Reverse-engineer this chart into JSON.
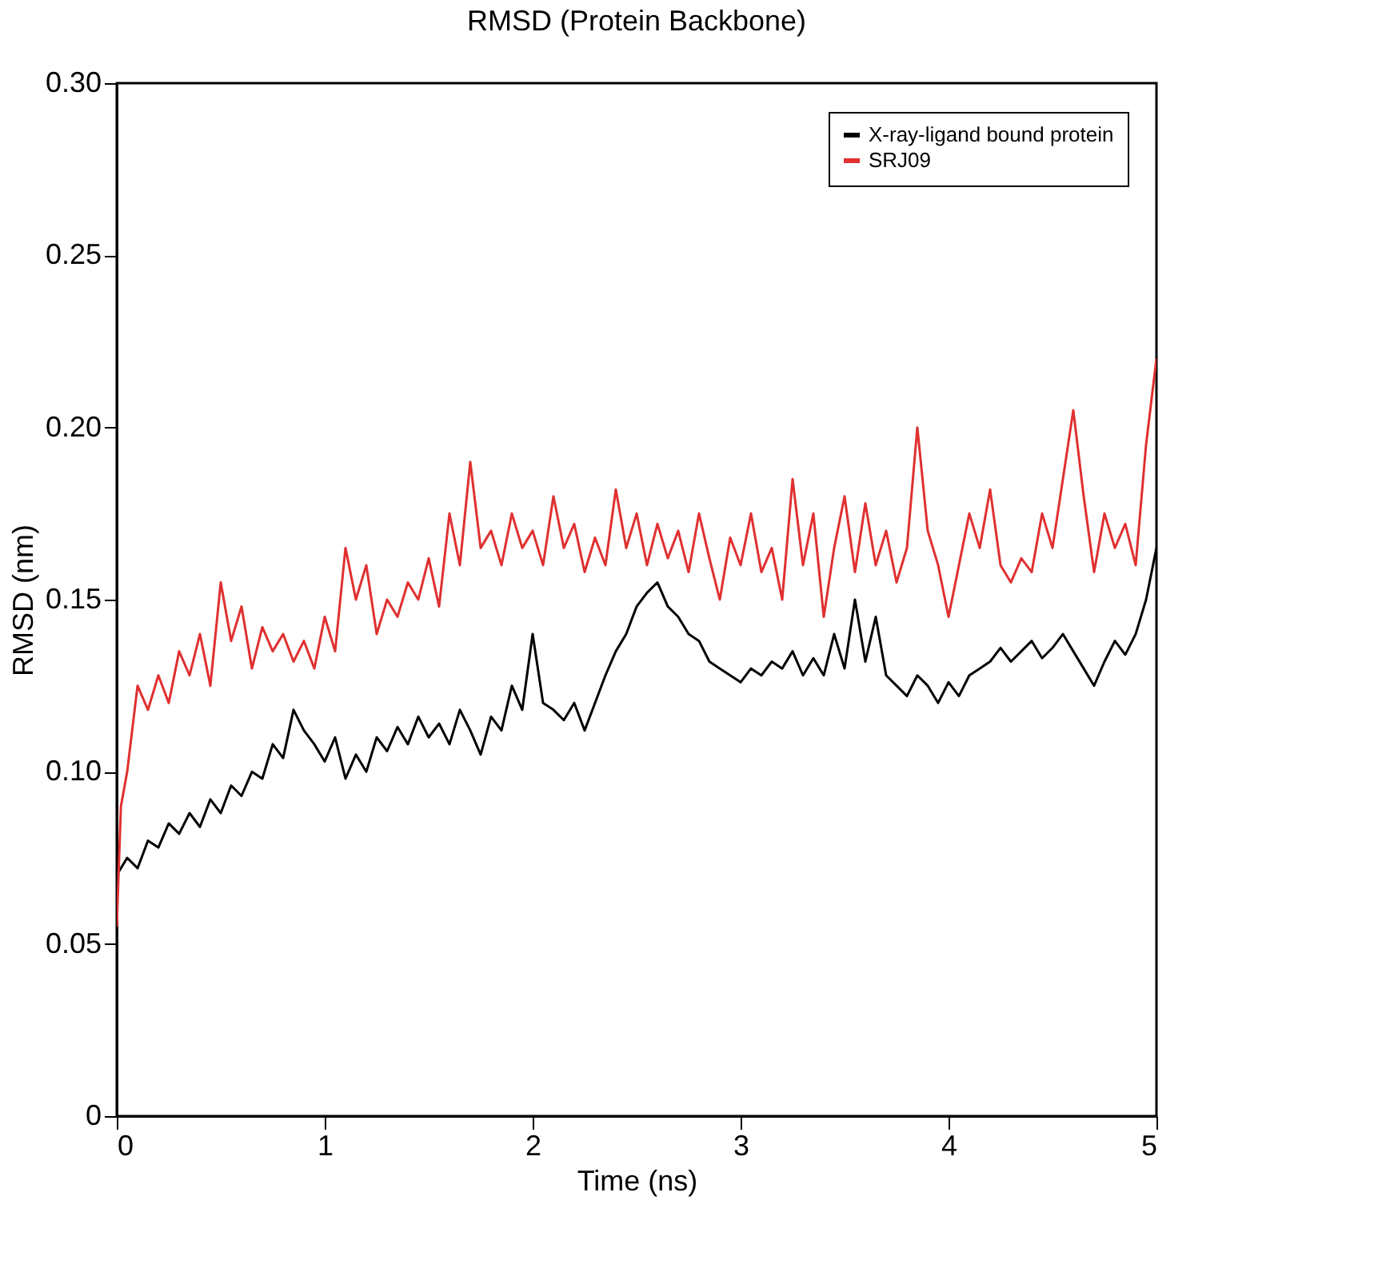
{
  "chart_data": {
    "type": "line",
    "title": "RMSD (Protein Backbone)",
    "xlabel": "Time (ns)",
    "ylabel": "RMSD (nm)",
    "xlim": [
      0,
      5
    ],
    "ylim": [
      0,
      0.3
    ],
    "xticks": [
      0,
      1,
      2,
      3,
      4,
      5
    ],
    "yticks": [
      0,
      0.05,
      {
        "value": 0.1,
        "label": "0.10"
      },
      {
        "value": 0.15,
        "label": "0.15"
      },
      {
        "value": 0.2,
        "label": "0.20"
      },
      0.25,
      {
        "value": 0.3,
        "label": "0.30"
      }
    ],
    "grid": false,
    "legend": "top right",
    "marker": "none",
    "line_style": "solid",
    "series": [
      {
        "name": "X-ray-ligand bound protein",
        "color": "#000000",
        "x": [
          0.0,
          0.05,
          0.1,
          0.15,
          0.2,
          0.25,
          0.3,
          0.35,
          0.4,
          0.45,
          0.5,
          0.55,
          0.6,
          0.65,
          0.7,
          0.75,
          0.8,
          0.85,
          0.9,
          0.95,
          1.0,
          1.05,
          1.1,
          1.15,
          1.2,
          1.25,
          1.3,
          1.35,
          1.4,
          1.45,
          1.5,
          1.55,
          1.6,
          1.65,
          1.7,
          1.75,
          1.8,
          1.85,
          1.9,
          1.95,
          2.0,
          2.05,
          2.1,
          2.15,
          2.2,
          2.25,
          2.3,
          2.35,
          2.4,
          2.45,
          2.5,
          2.55,
          2.6,
          2.65,
          2.7,
          2.75,
          2.8,
          2.85,
          2.9,
          2.95,
          3.0,
          3.05,
          3.1,
          3.15,
          3.2,
          3.25,
          3.3,
          3.35,
          3.4,
          3.45,
          3.5,
          3.55,
          3.6,
          3.65,
          3.7,
          3.75,
          3.8,
          3.85,
          3.9,
          3.95,
          4.0,
          4.05,
          4.1,
          4.15,
          4.2,
          4.25,
          4.3,
          4.35,
          4.4,
          4.45,
          4.5,
          4.55,
          4.6,
          4.65,
          4.7,
          4.75,
          4.8,
          4.85,
          4.9,
          4.95,
          5.0
        ],
        "values": [
          0.07,
          0.075,
          0.072,
          0.08,
          0.078,
          0.085,
          0.082,
          0.088,
          0.084,
          0.092,
          0.088,
          0.096,
          0.093,
          0.1,
          0.098,
          0.108,
          0.104,
          0.118,
          0.112,
          0.108,
          0.103,
          0.11,
          0.098,
          0.105,
          0.1,
          0.11,
          0.106,
          0.113,
          0.108,
          0.116,
          0.11,
          0.114,
          0.108,
          0.118,
          0.112,
          0.105,
          0.116,
          0.112,
          0.125,
          0.118,
          0.14,
          0.12,
          0.118,
          0.115,
          0.12,
          0.112,
          0.12,
          0.128,
          0.135,
          0.14,
          0.148,
          0.152,
          0.155,
          0.148,
          0.145,
          0.14,
          0.138,
          0.132,
          0.13,
          0.128,
          0.126,
          0.13,
          0.128,
          0.132,
          0.13,
          0.135,
          0.128,
          0.133,
          0.128,
          0.14,
          0.13,
          0.15,
          0.132,
          0.145,
          0.128,
          0.125,
          0.122,
          0.128,
          0.125,
          0.12,
          0.126,
          0.122,
          0.128,
          0.13,
          0.132,
          0.136,
          0.132,
          0.135,
          0.138,
          0.133,
          0.136,
          0.14,
          0.135,
          0.13,
          0.125,
          0.132,
          0.138,
          0.134,
          0.14,
          0.15,
          0.165
        ]
      },
      {
        "name": "SRJ09",
        "color": "#e03030",
        "x": [
          0.0,
          0.02,
          0.05,
          0.1,
          0.15,
          0.2,
          0.25,
          0.3,
          0.35,
          0.4,
          0.45,
          0.5,
          0.55,
          0.6,
          0.65,
          0.7,
          0.75,
          0.8,
          0.85,
          0.9,
          0.95,
          1.0,
          1.05,
          1.1,
          1.15,
          1.2,
          1.25,
          1.3,
          1.35,
          1.4,
          1.45,
          1.5,
          1.55,
          1.6,
          1.65,
          1.7,
          1.75,
          1.8,
          1.85,
          1.9,
          1.95,
          2.0,
          2.05,
          2.1,
          2.15,
          2.2,
          2.25,
          2.3,
          2.35,
          2.4,
          2.45,
          2.5,
          2.55,
          2.6,
          2.65,
          2.7,
          2.75,
          2.8,
          2.85,
          2.9,
          2.95,
          3.0,
          3.05,
          3.1,
          3.15,
          3.2,
          3.25,
          3.3,
          3.35,
          3.4,
          3.45,
          3.5,
          3.55,
          3.6,
          3.65,
          3.7,
          3.75,
          3.8,
          3.85,
          3.9,
          3.95,
          4.0,
          4.05,
          4.1,
          4.15,
          4.2,
          4.25,
          4.3,
          4.35,
          4.4,
          4.45,
          4.5,
          4.55,
          4.6,
          4.65,
          4.7,
          4.75,
          4.8,
          4.85,
          4.9,
          4.95,
          5.0
        ],
        "values": [
          0.055,
          0.09,
          0.1,
          0.125,
          0.118,
          0.128,
          0.12,
          0.135,
          0.128,
          0.14,
          0.125,
          0.155,
          0.138,
          0.148,
          0.13,
          0.142,
          0.135,
          0.14,
          0.132,
          0.138,
          0.13,
          0.145,
          0.135,
          0.165,
          0.15,
          0.16,
          0.14,
          0.15,
          0.145,
          0.155,
          0.15,
          0.162,
          0.148,
          0.175,
          0.16,
          0.19,
          0.165,
          0.17,
          0.16,
          0.175,
          0.165,
          0.17,
          0.16,
          0.18,
          0.165,
          0.172,
          0.158,
          0.168,
          0.16,
          0.182,
          0.165,
          0.175,
          0.16,
          0.172,
          0.162,
          0.17,
          0.158,
          0.175,
          0.162,
          0.15,
          0.168,
          0.16,
          0.175,
          0.158,
          0.165,
          0.15,
          0.185,
          0.16,
          0.175,
          0.145,
          0.165,
          0.18,
          0.158,
          0.178,
          0.16,
          0.17,
          0.155,
          0.165,
          0.2,
          0.17,
          0.16,
          0.145,
          0.16,
          0.175,
          0.165,
          0.182,
          0.16,
          0.155,
          0.162,
          0.158,
          0.175,
          0.165,
          0.185,
          0.205,
          0.18,
          0.158,
          0.175,
          0.165,
          0.172,
          0.16,
          0.195,
          0.22
        ]
      }
    ]
  }
}
